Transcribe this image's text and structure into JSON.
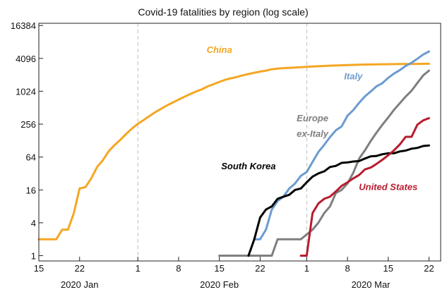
{
  "chart_data": {
    "type": "line",
    "title": "Covid-19 fatalities by region (log scale)",
    "y_scale": "log2",
    "ylim": [
      0.8,
      18000
    ],
    "xlim": [
      "2020-01-15",
      "2020-03-24"
    ],
    "y_ticks": [
      1,
      4,
      16,
      64,
      256,
      1024,
      4096,
      16384
    ],
    "y_tick_labels": [
      "1",
      "4",
      "16",
      "64",
      "256",
      "1024",
      "4096",
      "16384"
    ],
    "x_ticks": [
      {
        "date": "2020-01-15",
        "label": "15"
      },
      {
        "date": "2020-01-22",
        "label": "22"
      },
      {
        "date": "2020-02-01",
        "label": "1"
      },
      {
        "date": "2020-02-08",
        "label": "8"
      },
      {
        "date": "2020-02-15",
        "label": "15"
      },
      {
        "date": "2020-02-22",
        "label": "22"
      },
      {
        "date": "2020-03-01",
        "label": "1"
      },
      {
        "date": "2020-03-08",
        "label": "8"
      },
      {
        "date": "2020-03-15",
        "label": "15"
      },
      {
        "date": "2020-03-22",
        "label": "22"
      }
    ],
    "month_labels": [
      {
        "date": "2020-01-22",
        "label": "2020 Jan"
      },
      {
        "date": "2020-02-15",
        "label": "2020 Feb"
      },
      {
        "date": "2020-03-12",
        "label": "2020 Mar"
      }
    ],
    "gridlines": [
      "2020-02-01",
      "2020-03-01"
    ],
    "series": [
      {
        "name": "China",
        "color": "#f5a623",
        "points": [
          [
            "2020-01-15",
            2
          ],
          [
            "2020-01-16",
            2
          ],
          [
            "2020-01-17",
            2
          ],
          [
            "2020-01-18",
            2
          ],
          [
            "2020-01-19",
            3
          ],
          [
            "2020-01-20",
            3
          ],
          [
            "2020-01-21",
            6
          ],
          [
            "2020-01-22",
            17
          ],
          [
            "2020-01-23",
            18
          ],
          [
            "2020-01-24",
            26
          ],
          [
            "2020-01-25",
            42
          ],
          [
            "2020-01-26",
            56
          ],
          [
            "2020-01-27",
            82
          ],
          [
            "2020-01-28",
            106
          ],
          [
            "2020-01-29",
            132
          ],
          [
            "2020-01-30",
            170
          ],
          [
            "2020-01-31",
            213
          ],
          [
            "2020-02-01",
            259
          ],
          [
            "2020-02-02",
            304
          ],
          [
            "2020-02-03",
            361
          ],
          [
            "2020-02-04",
            425
          ],
          [
            "2020-02-05",
            490
          ],
          [
            "2020-02-06",
            563
          ],
          [
            "2020-02-07",
            636
          ],
          [
            "2020-02-08",
            722
          ],
          [
            "2020-02-09",
            811
          ],
          [
            "2020-02-10",
            908
          ],
          [
            "2020-02-11",
            1016
          ],
          [
            "2020-02-12",
            1113
          ],
          [
            "2020-02-13",
            1259
          ],
          [
            "2020-02-14",
            1380
          ],
          [
            "2020-02-15",
            1523
          ],
          [
            "2020-02-16",
            1665
          ],
          [
            "2020-02-17",
            1770
          ],
          [
            "2020-02-18",
            1868
          ],
          [
            "2020-02-19",
            2004
          ],
          [
            "2020-02-20",
            2118
          ],
          [
            "2020-02-21",
            2236
          ],
          [
            "2020-02-22",
            2345
          ],
          [
            "2020-02-23",
            2442
          ],
          [
            "2020-02-24",
            2592
          ],
          [
            "2020-02-25",
            2663
          ],
          [
            "2020-02-26",
            2715
          ],
          [
            "2020-02-27",
            2744
          ],
          [
            "2020-02-28",
            2788
          ],
          [
            "2020-02-29",
            2835
          ],
          [
            "2020-03-02",
            2912
          ],
          [
            "2020-03-05",
            3015
          ],
          [
            "2020-03-08",
            3097
          ],
          [
            "2020-03-11",
            3162
          ],
          [
            "2020-03-14",
            3199
          ],
          [
            "2020-03-17",
            3230
          ],
          [
            "2020-03-20",
            3248
          ],
          [
            "2020-03-22",
            3261
          ]
        ]
      },
      {
        "name": "Italy",
        "color": "#6b9bd1",
        "points": [
          [
            "2020-02-21",
            2
          ],
          [
            "2020-02-22",
            2
          ],
          [
            "2020-02-23",
            3
          ],
          [
            "2020-02-24",
            7
          ],
          [
            "2020-02-25",
            10
          ],
          [
            "2020-02-26",
            12
          ],
          [
            "2020-02-27",
            17
          ],
          [
            "2020-02-28",
            21
          ],
          [
            "2020-02-29",
            29
          ],
          [
            "2020-03-01",
            34
          ],
          [
            "2020-03-02",
            52
          ],
          [
            "2020-03-03",
            79
          ],
          [
            "2020-03-04",
            107
          ],
          [
            "2020-03-05",
            148
          ],
          [
            "2020-03-06",
            197
          ],
          [
            "2020-03-07",
            233
          ],
          [
            "2020-03-08",
            366
          ],
          [
            "2020-03-09",
            463
          ],
          [
            "2020-03-10",
            631
          ],
          [
            "2020-03-11",
            827
          ],
          [
            "2020-03-12",
            1016
          ],
          [
            "2020-03-13",
            1266
          ],
          [
            "2020-03-14",
            1441
          ],
          [
            "2020-03-15",
            1809
          ],
          [
            "2020-03-16",
            2158
          ],
          [
            "2020-03-17",
            2503
          ],
          [
            "2020-03-18",
            2978
          ],
          [
            "2020-03-19",
            3405
          ],
          [
            "2020-03-20",
            4032
          ],
          [
            "2020-03-21",
            4825
          ],
          [
            "2020-03-22",
            5476
          ]
        ]
      },
      {
        "name": "Europe ex-Italy",
        "color": "#7f7f7f",
        "points": [
          [
            "2020-02-15",
            1
          ],
          [
            "2020-02-24",
            1
          ],
          [
            "2020-02-25",
            2
          ],
          [
            "2020-02-28",
            2
          ],
          [
            "2020-02-29",
            2
          ],
          [
            "2020-03-02",
            3
          ],
          [
            "2020-03-03",
            4
          ],
          [
            "2020-03-04",
            6
          ],
          [
            "2020-03-05",
            8
          ],
          [
            "2020-03-06",
            14
          ],
          [
            "2020-03-07",
            16
          ],
          [
            "2020-03-08",
            21
          ],
          [
            "2020-03-09",
            33
          ],
          [
            "2020-03-10",
            60
          ],
          [
            "2020-03-11",
            85
          ],
          [
            "2020-03-12",
            126
          ],
          [
            "2020-03-13",
            180
          ],
          [
            "2020-03-14",
            250
          ],
          [
            "2020-03-15",
            340
          ],
          [
            "2020-03-16",
            470
          ],
          [
            "2020-03-17",
            620
          ],
          [
            "2020-03-18",
            820
          ],
          [
            "2020-03-19",
            1050
          ],
          [
            "2020-03-20",
            1450
          ],
          [
            "2020-03-21",
            2000
          ],
          [
            "2020-03-22",
            2450
          ]
        ]
      },
      {
        "name": "South Korea",
        "color": "#000000",
        "points": [
          [
            "2020-02-20",
            1
          ],
          [
            "2020-02-21",
            2
          ],
          [
            "2020-02-22",
            5
          ],
          [
            "2020-02-23",
            7
          ],
          [
            "2020-02-24",
            8
          ],
          [
            "2020-02-25",
            11
          ],
          [
            "2020-02-26",
            12
          ],
          [
            "2020-02-27",
            13
          ],
          [
            "2020-02-28",
            16
          ],
          [
            "2020-02-29",
            17
          ],
          [
            "2020-03-01",
            22
          ],
          [
            "2020-03-02",
            28
          ],
          [
            "2020-03-03",
            32
          ],
          [
            "2020-03-04",
            35
          ],
          [
            "2020-03-05",
            42
          ],
          [
            "2020-03-06",
            44
          ],
          [
            "2020-03-07",
            50
          ],
          [
            "2020-03-08",
            51
          ],
          [
            "2020-03-09",
            53
          ],
          [
            "2020-03-10",
            54
          ],
          [
            "2020-03-11",
            60
          ],
          [
            "2020-03-12",
            66
          ],
          [
            "2020-03-13",
            67
          ],
          [
            "2020-03-14",
            72
          ],
          [
            "2020-03-15",
            75
          ],
          [
            "2020-03-16",
            75
          ],
          [
            "2020-03-17",
            81
          ],
          [
            "2020-03-18",
            84
          ],
          [
            "2020-03-19",
            91
          ],
          [
            "2020-03-20",
            94
          ],
          [
            "2020-03-21",
            102
          ],
          [
            "2020-03-22",
            104
          ]
        ]
      },
      {
        "name": "United States",
        "color": "#b71c2e",
        "points": [
          [
            "2020-02-29",
            1
          ],
          [
            "2020-03-01",
            1
          ],
          [
            "2020-03-02",
            6
          ],
          [
            "2020-03-03",
            9
          ],
          [
            "2020-03-04",
            11
          ],
          [
            "2020-03-05",
            12
          ],
          [
            "2020-03-06",
            15
          ],
          [
            "2020-03-07",
            19
          ],
          [
            "2020-03-08",
            22
          ],
          [
            "2020-03-09",
            26
          ],
          [
            "2020-03-10",
            30
          ],
          [
            "2020-03-11",
            38
          ],
          [
            "2020-03-12",
            41
          ],
          [
            "2020-03-13",
            48
          ],
          [
            "2020-03-14",
            57
          ],
          [
            "2020-03-15",
            69
          ],
          [
            "2020-03-16",
            85
          ],
          [
            "2020-03-17",
            109
          ],
          [
            "2020-03-18",
            150
          ],
          [
            "2020-03-19",
            150
          ],
          [
            "2020-03-20",
            250
          ],
          [
            "2020-03-21",
            300
          ],
          [
            "2020-03-22",
            330
          ]
        ]
      }
    ],
    "annotations": [
      {
        "series": "China",
        "text": "China",
        "at": [
          "2020-02-15",
          5200
        ],
        "color": "#f5a623"
      },
      {
        "series": "Italy",
        "text": "Italy",
        "at": [
          "2020-03-09",
          1700
        ],
        "color": "#6b9bd1"
      },
      {
        "series": "Europe ex-Italy",
        "text": "Europe",
        "at": [
          "2020-03-02",
          290
        ],
        "color": "#7f7f7f"
      },
      {
        "series": "Europe ex-Italy",
        "text": "ex-Italy",
        "at": [
          "2020-03-02",
          150
        ],
        "color": "#7f7f7f"
      },
      {
        "series": "South Korea",
        "text": "South Korea",
        "at": [
          "2020-02-20",
          38
        ],
        "color": "#000000"
      },
      {
        "series": "United States",
        "text": "United States",
        "at": [
          "2020-03-15",
          16
        ],
        "color": "#b71c2e"
      }
    ]
  }
}
